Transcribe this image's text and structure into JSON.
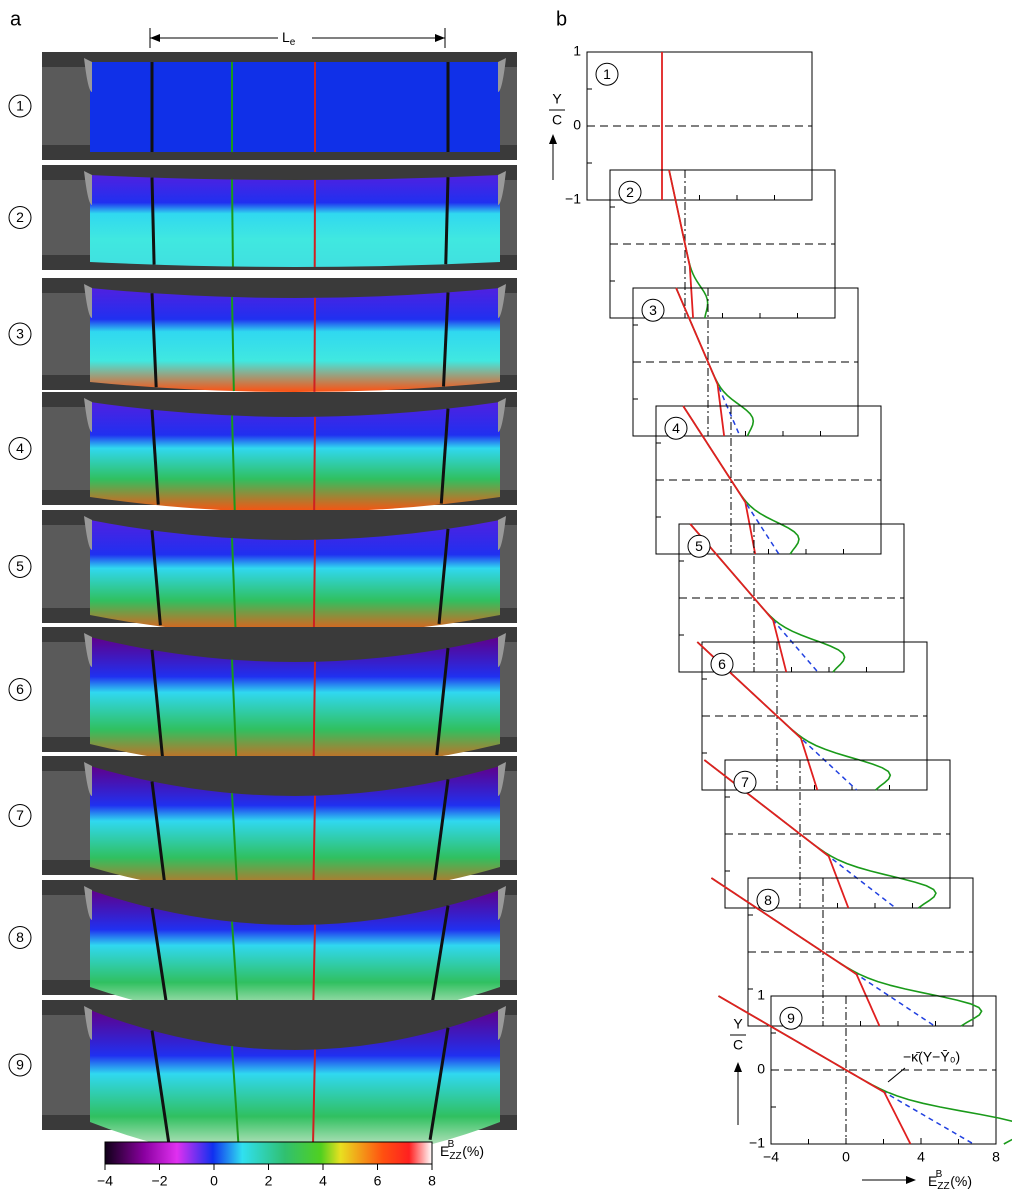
{
  "panel_a": {
    "label": "a",
    "length_label": "L",
    "length_label_sub": "e",
    "stages": [
      "1",
      "2",
      "3",
      "4",
      "5",
      "6",
      "7",
      "8",
      "9"
    ],
    "colorbar": {
      "ticks": [
        {
          "value": -4,
          "label": "−4"
        },
        {
          "value": -2,
          "label": "−2"
        },
        0,
        2,
        4,
        6,
        8
      ],
      "label": "E",
      "label_sub": "ZZ",
      "label_sup": "B",
      "unit": "(%)"
    }
  },
  "panel_b": {
    "label": "b",
    "stages": [
      "1",
      "2",
      "3",
      "4",
      "5",
      "6",
      "7",
      "8",
      "9"
    ],
    "y_label_top": "Y",
    "y_label_bottom": "C",
    "yticks": [
      1,
      0,
      {
        "value": -1,
        "label": "−1"
      }
    ],
    "xticks": [
      {
        "value": -4,
        "label": "−4"
      },
      0,
      4,
      8
    ],
    "x_label": "E",
    "x_label_sub": "ZZ",
    "x_label_sup": "B",
    "x_unit": "(%)",
    "annotation": "−κ̄(Y−Ȳ₀)"
  }
}
